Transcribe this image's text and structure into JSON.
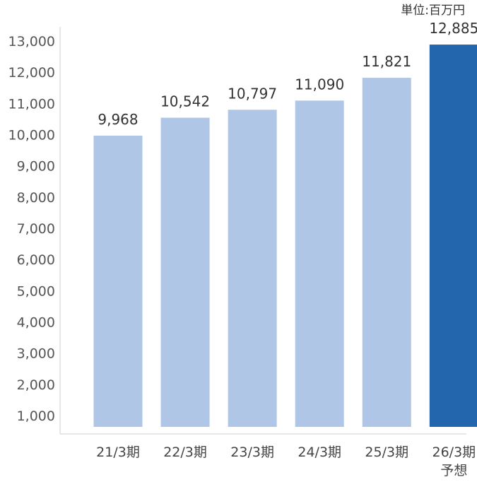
{
  "chart_data": {
    "type": "bar",
    "unit": "単位:百万円",
    "categories": [
      "21/3期",
      "22/3期",
      "23/3期",
      "24/3期",
      "25/3期",
      "26/3期"
    ],
    "category_sublabels": [
      "",
      "",
      "",
      "",
      "",
      "予想"
    ],
    "values": [
      9968,
      10542,
      10797,
      11090,
      11821,
      12885
    ],
    "value_labels": [
      "9,968",
      "10,542",
      "10,797",
      "11,090",
      "11,821",
      "12,885"
    ],
    "yticks": [
      1000,
      2000,
      3000,
      4000,
      5000,
      6000,
      7000,
      8000,
      9000,
      10000,
      11000,
      12000,
      13000
    ],
    "ytick_labels": [
      "1,000",
      "2,000",
      "3,000",
      "4,000",
      "5,000",
      "6,000",
      "7,000",
      "8,000",
      "9,000",
      "10,000",
      "11,000",
      "12,000",
      "13,000"
    ],
    "ylim": [
      0,
      13000
    ],
    "grid": false,
    "colors": {
      "actual": "#b0c6e6",
      "forecast": "#2366ae",
      "axis": "#cfcfcf"
    },
    "highlight_index": 5
  }
}
